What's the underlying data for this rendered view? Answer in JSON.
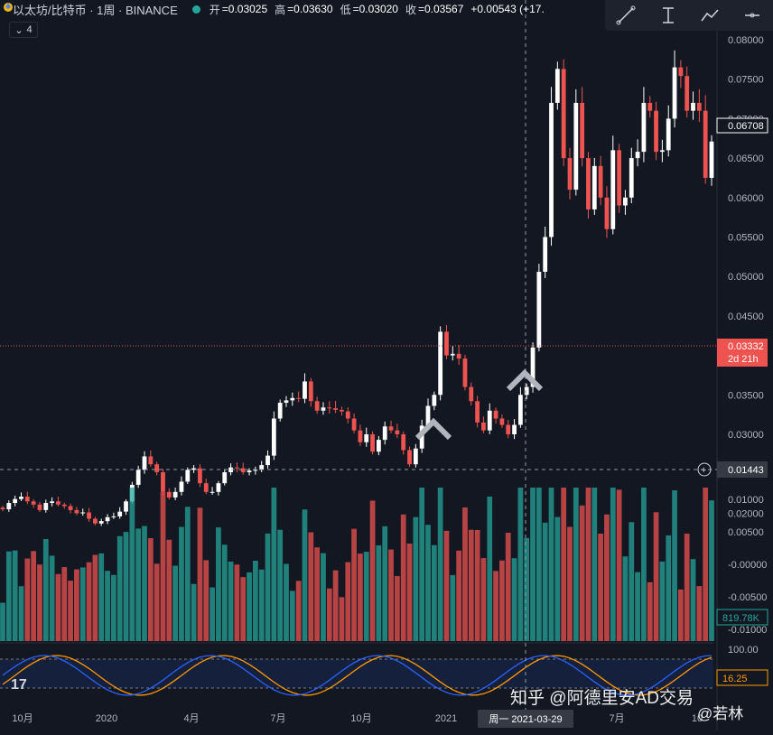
{
  "header": {
    "symbol": "以太坊/比特币 · 1周 · BINANCE",
    "open_label": "开",
    "open": "=0.03025",
    "high_label": "高",
    "high": "=0.03630",
    "low_label": "低",
    "low": "=0.03020",
    "close_label": "收",
    "close": "=0.03567",
    "change": "+0.00543 (+17."
  },
  "collapse": {
    "label": "4"
  },
  "toolbar": {
    "icons": [
      "trend-line-icon",
      "cursor-measure-icon",
      "path-icon",
      "horizontal-line-icon"
    ]
  },
  "price_axis": {
    "ticks": [
      "0.08000",
      "0.07500",
      "0.07000",
      "0.06500",
      "0.06000",
      "0.05500",
      "0.05000",
      "0.04500",
      "0.04000",
      "0.03500",
      "0.03000",
      "0.02500",
      "0.02000"
    ],
    "last_price": "0.06708",
    "current_price": "0.03332",
    "countdown": "2d 21h",
    "crosshair_price": "0.01443"
  },
  "volume_axis": {
    "ticks": [
      "0.01000",
      "0.00500",
      "-0.00000",
      "-0.00500",
      "-0.01000"
    ],
    "volume_label": "819.78K"
  },
  "osc_axis": {
    "top": "100.00",
    "value": "16.25"
  },
  "time_axis": {
    "labels": [
      "10月",
      "2020",
      "4月",
      "7月",
      "10月",
      "2021",
      "7月",
      "10"
    ],
    "crosshair_date": "周一 2021-03-29"
  },
  "watermark": {
    "text": "知乎 @阿德里安AD交易",
    "sub": "@若林"
  },
  "logo": {
    "text": "17"
  },
  "colors": {
    "up": "#ffffff",
    "down": "#ef5350",
    "vol_up": "#26a69a",
    "vol_down": "#ef5350",
    "osc_blue": "#2962ff",
    "osc_orange": "#ff9800"
  },
  "chart_data": {
    "type": "candlestick",
    "timeframe": "1W",
    "ylim": [
      0.0155,
      0.0835
    ],
    "candles_close": [
      0.0205,
      0.0213,
      0.0218,
      0.0221,
      0.0215,
      0.0211,
      0.0204,
      0.0213,
      0.0215,
      0.0211,
      0.0209,
      0.0204,
      0.02,
      0.0201,
      0.0193,
      0.0187,
      0.019,
      0.0195,
      0.0196,
      0.0202,
      0.0215,
      0.0236,
      0.0255,
      0.0272,
      0.0262,
      0.0252,
      0.0227,
      0.022,
      0.0227,
      0.024,
      0.0255,
      0.0257,
      0.0238,
      0.0227,
      0.0227,
      0.0238,
      0.0252,
      0.0258,
      0.0257,
      0.0252,
      0.0254,
      0.0255,
      0.0261,
      0.0273,
      0.032,
      0.034,
      0.0343,
      0.0346,
      0.0345,
      0.0367,
      0.0342,
      0.033,
      0.0334,
      0.0333,
      0.0331,
      0.0329,
      0.032,
      0.0305,
      0.029,
      0.03,
      0.0278,
      0.0293,
      0.031,
      0.0305,
      0.03,
      0.028,
      0.0262,
      0.0282,
      0.0311,
      0.0336,
      0.035,
      0.043,
      0.04,
      0.0402,
      0.0396,
      0.036,
      0.0342,
      0.0315,
      0.0305,
      0.033,
      0.032,
      0.0312,
      0.03,
      0.0312,
      0.035,
      0.036,
      0.041,
      0.0506,
      0.055,
      0.072,
      0.0763,
      0.065,
      0.061,
      0.072,
      0.065,
      0.0585,
      0.064,
      0.06,
      0.056,
      0.066,
      0.059,
      0.06,
      0.065,
      0.0658,
      0.072,
      0.071,
      0.0658,
      0.066,
      0.07,
      0.0765,
      0.0754,
      0.071,
      0.072,
      0.071,
      0.0625,
      0.0671
    ]
  }
}
